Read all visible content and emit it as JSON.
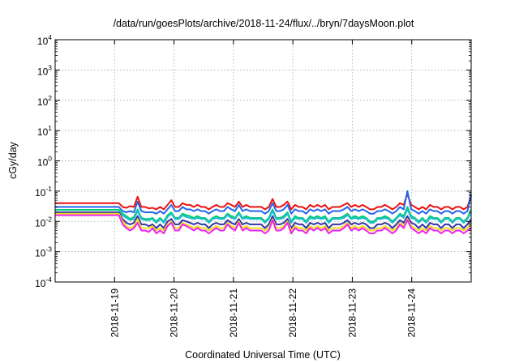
{
  "chart_data": {
    "type": "line",
    "title": "/data/run/goesPlots/archive/2018-11-24/flux/../bryn/7daysMoon.plot",
    "xlabel": "Coordinated Universal Time (UTC)",
    "ylabel": "cGy/day",
    "y_scale": "log",
    "ylim": [
      0.0001,
      10000
    ],
    "y_ticks": [
      {
        "base": "10",
        "exp": "-4"
      },
      {
        "base": "10",
        "exp": "-3"
      },
      {
        "base": "10",
        "exp": "-2"
      },
      {
        "base": "10",
        "exp": "-1"
      },
      {
        "base": "10",
        "exp": "0"
      },
      {
        "base": "10",
        "exp": "1"
      },
      {
        "base": "10",
        "exp": "2"
      },
      {
        "base": "10",
        "exp": "3"
      },
      {
        "base": "10",
        "exp": "4"
      }
    ],
    "xlim": [
      "2018-11-18T00:00",
      "2018-11-25T00:00"
    ],
    "x_ticks": [
      "2018-11-19",
      "2018-11-20",
      "2018-11-21",
      "2018-11-22",
      "2018-11-23",
      "2018-11-24"
    ],
    "grid": true,
    "legend": "none",
    "series": [
      {
        "color": "#ee1111",
        "values": [
          0.04,
          0.04,
          0.04,
          0.04,
          0.04,
          0.04,
          0.04,
          0.04,
          0.04,
          0.04,
          0.04,
          0.04,
          0.04,
          0.04,
          0.04,
          0.04,
          0.04,
          0.04,
          0.03,
          0.028,
          0.032,
          0.03,
          0.065,
          0.03,
          0.03,
          0.027,
          0.028,
          0.025,
          0.03,
          0.025,
          0.035,
          0.05,
          0.03,
          0.03,
          0.04,
          0.035,
          0.035,
          0.03,
          0.035,
          0.03,
          0.03,
          0.025,
          0.03,
          0.035,
          0.03,
          0.03,
          0.04,
          0.035,
          0.03,
          0.045,
          0.03,
          0.035,
          0.03,
          0.03,
          0.03,
          0.03,
          0.025,
          0.03,
          0.055,
          0.03,
          0.03,
          0.035,
          0.045,
          0.025,
          0.035,
          0.03,
          0.03,
          0.025,
          0.035,
          0.03,
          0.035,
          0.03,
          0.035,
          0.025,
          0.03,
          0.03,
          0.03,
          0.035,
          0.04,
          0.03,
          0.035,
          0.03,
          0.035,
          0.03,
          0.025,
          0.025,
          0.03,
          0.03,
          0.035,
          0.03,
          0.025,
          0.03,
          0.04,
          0.035,
          0.08,
          0.035,
          0.03,
          0.025,
          0.03,
          0.025,
          0.035,
          0.03,
          0.03,
          0.025,
          0.03,
          0.03,
          0.025,
          0.03,
          0.03,
          0.025,
          0.03,
          0.07
        ]
      },
      {
        "color": "#2266ee",
        "values": [
          0.03,
          0.03,
          0.03,
          0.03,
          0.03,
          0.03,
          0.03,
          0.03,
          0.03,
          0.03,
          0.03,
          0.03,
          0.03,
          0.03,
          0.03,
          0.03,
          0.03,
          0.03,
          0.022,
          0.02,
          0.022,
          0.02,
          0.045,
          0.022,
          0.02,
          0.02,
          0.02,
          0.018,
          0.022,
          0.018,
          0.025,
          0.035,
          0.022,
          0.022,
          0.03,
          0.025,
          0.025,
          0.022,
          0.025,
          0.022,
          0.022,
          0.018,
          0.022,
          0.025,
          0.022,
          0.022,
          0.03,
          0.025,
          0.022,
          0.035,
          0.022,
          0.025,
          0.022,
          0.022,
          0.022,
          0.022,
          0.018,
          0.022,
          0.04,
          0.022,
          0.022,
          0.025,
          0.035,
          0.018,
          0.025,
          0.022,
          0.022,
          0.018,
          0.025,
          0.022,
          0.025,
          0.022,
          0.025,
          0.018,
          0.022,
          0.022,
          0.022,
          0.025,
          0.03,
          0.022,
          0.025,
          0.022,
          0.025,
          0.022,
          0.018,
          0.018,
          0.022,
          0.022,
          0.025,
          0.022,
          0.018,
          0.022,
          0.03,
          0.025,
          0.1,
          0.025,
          0.022,
          0.018,
          0.022,
          0.018,
          0.025,
          0.022,
          0.022,
          0.018,
          0.022,
          0.022,
          0.018,
          0.022,
          0.022,
          0.018,
          0.022,
          0.08
        ]
      },
      {
        "color": "#00cc77",
        "values": [
          0.024,
          0.024,
          0.024,
          0.024,
          0.024,
          0.024,
          0.024,
          0.024,
          0.024,
          0.024,
          0.024,
          0.024,
          0.024,
          0.024,
          0.024,
          0.024,
          0.024,
          0.024,
          0.018,
          0.015,
          0.012,
          0.014,
          0.025,
          0.013,
          0.012,
          0.012,
          0.013,
          0.01,
          0.013,
          0.01,
          0.016,
          0.02,
          0.013,
          0.013,
          0.018,
          0.016,
          0.015,
          0.013,
          0.015,
          0.013,
          0.013,
          0.01,
          0.013,
          0.015,
          0.013,
          0.013,
          0.018,
          0.015,
          0.013,
          0.02,
          0.013,
          0.015,
          0.013,
          0.013,
          0.013,
          0.013,
          0.01,
          0.013,
          0.025,
          0.013,
          0.013,
          0.015,
          0.02,
          0.01,
          0.015,
          0.013,
          0.013,
          0.01,
          0.015,
          0.013,
          0.015,
          0.013,
          0.015,
          0.01,
          0.013,
          0.013,
          0.013,
          0.015,
          0.018,
          0.013,
          0.015,
          0.013,
          0.015,
          0.013,
          0.01,
          0.01,
          0.013,
          0.013,
          0.015,
          0.013,
          0.01,
          0.013,
          0.018,
          0.015,
          0.03,
          0.015,
          0.013,
          0.01,
          0.013,
          0.01,
          0.015,
          0.013,
          0.013,
          0.01,
          0.013,
          0.013,
          0.01,
          0.013,
          0.013,
          0.01,
          0.013,
          0.025
        ]
      },
      {
        "color": "#22bbcc",
        "values": [
          0.02,
          0.02,
          0.02,
          0.02,
          0.02,
          0.02,
          0.02,
          0.02,
          0.02,
          0.02,
          0.02,
          0.02,
          0.02,
          0.02,
          0.02,
          0.02,
          0.02,
          0.02,
          0.016,
          0.013,
          0.011,
          0.012,
          0.022,
          0.012,
          0.011,
          0.011,
          0.012,
          0.009,
          0.012,
          0.009,
          0.014,
          0.018,
          0.012,
          0.012,
          0.016,
          0.014,
          0.013,
          0.012,
          0.013,
          0.012,
          0.012,
          0.009,
          0.012,
          0.013,
          0.012,
          0.012,
          0.016,
          0.013,
          0.012,
          0.018,
          0.012,
          0.013,
          0.012,
          0.012,
          0.012,
          0.012,
          0.009,
          0.012,
          0.022,
          0.012,
          0.012,
          0.013,
          0.018,
          0.009,
          0.013,
          0.012,
          0.012,
          0.009,
          0.013,
          0.012,
          0.013,
          0.012,
          0.013,
          0.009,
          0.012,
          0.012,
          0.012,
          0.013,
          0.016,
          0.012,
          0.013,
          0.012,
          0.013,
          0.012,
          0.009,
          0.009,
          0.012,
          0.012,
          0.013,
          0.012,
          0.009,
          0.012,
          0.016,
          0.013,
          0.025,
          0.013,
          0.012,
          0.009,
          0.012,
          0.009,
          0.013,
          0.012,
          0.012,
          0.009,
          0.012,
          0.012,
          0.009,
          0.012,
          0.012,
          0.009,
          0.012,
          0.02
        ]
      },
      {
        "color": "#3333aa",
        "values": [
          0.02,
          0.02,
          0.02,
          0.02,
          0.02,
          0.02,
          0.02,
          0.02,
          0.02,
          0.02,
          0.02,
          0.02,
          0.02,
          0.02,
          0.02,
          0.02,
          0.02,
          0.02,
          0.012,
          0.009,
          0.008,
          0.009,
          0.015,
          0.008,
          0.008,
          0.007,
          0.008,
          0.006,
          0.008,
          0.006,
          0.01,
          0.012,
          0.008,
          0.008,
          0.011,
          0.01,
          0.009,
          0.008,
          0.009,
          0.008,
          0.008,
          0.006,
          0.008,
          0.009,
          0.008,
          0.008,
          0.011,
          0.009,
          0.008,
          0.012,
          0.008,
          0.009,
          0.008,
          0.008,
          0.008,
          0.008,
          0.006,
          0.008,
          0.015,
          0.008,
          0.008,
          0.009,
          0.012,
          0.006,
          0.009,
          0.008,
          0.008,
          0.006,
          0.009,
          0.008,
          0.009,
          0.008,
          0.009,
          0.006,
          0.008,
          0.008,
          0.008,
          0.009,
          0.011,
          0.008,
          0.009,
          0.008,
          0.009,
          0.008,
          0.006,
          0.006,
          0.008,
          0.008,
          0.009,
          0.008,
          0.006,
          0.008,
          0.011,
          0.009,
          0.015,
          0.009,
          0.008,
          0.006,
          0.008,
          0.006,
          0.009,
          0.008,
          0.008,
          0.006,
          0.008,
          0.008,
          0.006,
          0.008,
          0.008,
          0.006,
          0.008,
          0.012
        ]
      },
      {
        "color": "#eedd22",
        "values": [
          0.018,
          0.018,
          0.018,
          0.018,
          0.018,
          0.018,
          0.018,
          0.018,
          0.018,
          0.018,
          0.018,
          0.018,
          0.018,
          0.018,
          0.018,
          0.018,
          0.018,
          0.018,
          0.01,
          0.007,
          0.006,
          0.007,
          0.012,
          0.006,
          0.006,
          0.006,
          0.007,
          0.005,
          0.006,
          0.005,
          0.008,
          0.01,
          0.006,
          0.006,
          0.009,
          0.008,
          0.007,
          0.006,
          0.007,
          0.006,
          0.006,
          0.005,
          0.006,
          0.007,
          0.006,
          0.006,
          0.009,
          0.007,
          0.006,
          0.01,
          0.006,
          0.007,
          0.006,
          0.006,
          0.006,
          0.006,
          0.005,
          0.006,
          0.012,
          0.006,
          0.006,
          0.007,
          0.01,
          0.005,
          0.007,
          0.006,
          0.006,
          0.005,
          0.007,
          0.006,
          0.007,
          0.006,
          0.007,
          0.005,
          0.006,
          0.006,
          0.006,
          0.007,
          0.009,
          0.006,
          0.007,
          0.006,
          0.007,
          0.006,
          0.005,
          0.005,
          0.006,
          0.006,
          0.007,
          0.006,
          0.005,
          0.006,
          0.009,
          0.007,
          0.012,
          0.007,
          0.006,
          0.005,
          0.006,
          0.005,
          0.007,
          0.006,
          0.006,
          0.005,
          0.006,
          0.006,
          0.005,
          0.006,
          0.006,
          0.005,
          0.006,
          0.009
        ]
      },
      {
        "color": "#ee22ee",
        "values": [
          0.016,
          0.016,
          0.016,
          0.016,
          0.016,
          0.016,
          0.016,
          0.016,
          0.016,
          0.016,
          0.016,
          0.016,
          0.016,
          0.016,
          0.016,
          0.016,
          0.016,
          0.016,
          0.008,
          0.006,
          0.005,
          0.006,
          0.009,
          0.005,
          0.005,
          0.0045,
          0.006,
          0.004,
          0.005,
          0.004,
          0.007,
          0.009,
          0.005,
          0.005,
          0.008,
          0.007,
          0.006,
          0.005,
          0.006,
          0.005,
          0.005,
          0.004,
          0.005,
          0.006,
          0.005,
          0.005,
          0.008,
          0.006,
          0.005,
          0.009,
          0.005,
          0.006,
          0.005,
          0.005,
          0.005,
          0.005,
          0.004,
          0.005,
          0.011,
          0.005,
          0.005,
          0.006,
          0.009,
          0.004,
          0.006,
          0.005,
          0.005,
          0.004,
          0.006,
          0.005,
          0.006,
          0.005,
          0.006,
          0.004,
          0.005,
          0.005,
          0.005,
          0.006,
          0.008,
          0.005,
          0.006,
          0.005,
          0.006,
          0.005,
          0.004,
          0.004,
          0.005,
          0.005,
          0.006,
          0.005,
          0.004,
          0.005,
          0.008,
          0.006,
          0.011,
          0.006,
          0.005,
          0.004,
          0.005,
          0.004,
          0.006,
          0.005,
          0.005,
          0.004,
          0.005,
          0.005,
          0.004,
          0.005,
          0.005,
          0.004,
          0.005,
          0.006
        ]
      }
    ]
  }
}
